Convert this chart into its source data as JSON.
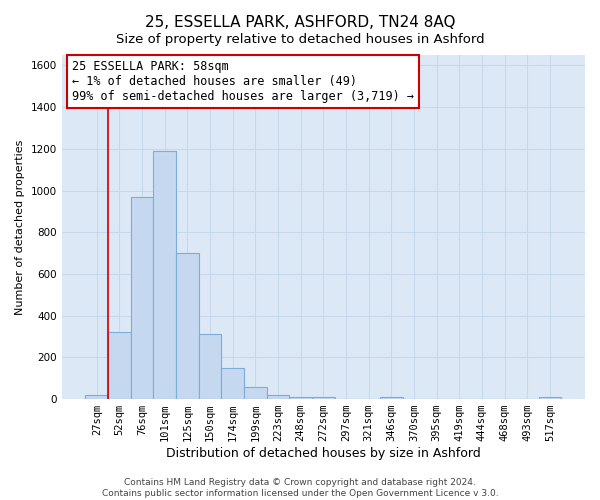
{
  "title": "25, ESSELLA PARK, ASHFORD, TN24 8AQ",
  "subtitle": "Size of property relative to detached houses in Ashford",
  "xlabel": "Distribution of detached houses by size in Ashford",
  "ylabel": "Number of detached properties",
  "bar_labels": [
    "27sqm",
    "52sqm",
    "76sqm",
    "101sqm",
    "125sqm",
    "150sqm",
    "174sqm",
    "199sqm",
    "223sqm",
    "248sqm",
    "272sqm",
    "297sqm",
    "321sqm",
    "346sqm",
    "370sqm",
    "395sqm",
    "419sqm",
    "444sqm",
    "468sqm",
    "493sqm",
    "517sqm"
  ],
  "bar_values": [
    20,
    320,
    970,
    1190,
    700,
    310,
    150,
    60,
    18,
    12,
    10,
    0,
    0,
    12,
    0,
    0,
    0,
    0,
    0,
    0,
    12
  ],
  "bar_color": "#c5d8f0",
  "bar_edge_color": "#7aaed6",
  "vline_color": "#cc0000",
  "annotation_text": "25 ESSELLA PARK: 58sqm\n← 1% of detached houses are smaller (49)\n99% of semi-detached houses are larger (3,719) →",
  "annotation_box_color": "#ffffff",
  "annotation_box_edge_color": "#cc0000",
  "ylim": [
    0,
    1650
  ],
  "yticks": [
    0,
    200,
    400,
    600,
    800,
    1000,
    1200,
    1400,
    1600
  ],
  "footer1": "Contains HM Land Registry data © Crown copyright and database right 2024.",
  "footer2": "Contains public sector information licensed under the Open Government Licence v 3.0.",
  "fig_background_color": "#ffffff",
  "plot_background_color": "#dce8f5",
  "grid_color": "#c8d8ec",
  "title_fontsize": 11,
  "subtitle_fontsize": 9.5,
  "xlabel_fontsize": 9,
  "ylabel_fontsize": 8,
  "tick_fontsize": 7.5,
  "annotation_fontsize": 8.5,
  "footer_fontsize": 6.5
}
